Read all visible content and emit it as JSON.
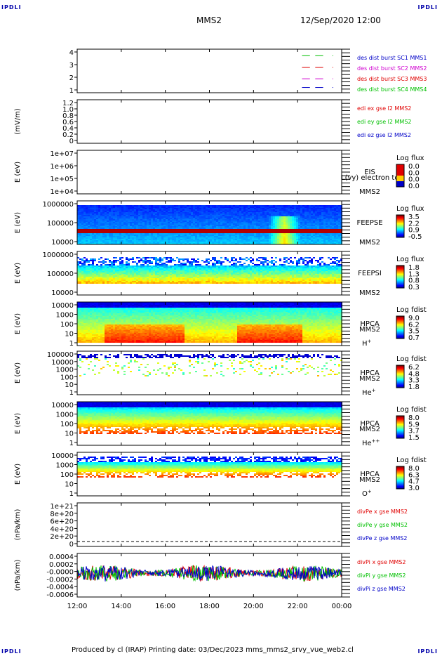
{
  "corner_label": "IPDLI",
  "header": {
    "spacecraft": "MMS2",
    "datetime": "12/Sep/2020 12:00"
  },
  "footer": "Produced by cl (IRAP)   Printing date: 03/Dec/2023   mms_mms2_srvy_vue_web2.cl",
  "x_ticks": [
    "12:00",
    "14:00",
    "16:00",
    "18:00",
    "20:00",
    "22:00",
    "00:00"
  ],
  "colors": {
    "red": "#e00000",
    "green": "#00c000",
    "blue": "#0000c8",
    "magenta": "#d000d0"
  },
  "chart_data": [
    {
      "type": "line",
      "panel": "dist_burst",
      "yticks": [
        "4",
        "3",
        "2",
        "1"
      ],
      "ylim": [
        0.5,
        4.5
      ],
      "legend": [
        {
          "name": "des dist burst SC1 MMS1",
          "color": "#0000c8"
        },
        {
          "name": "des dist burst SC2 MMS2",
          "color": "#d000d0"
        },
        {
          "name": "des dist burst SC3 MMS3",
          "color": "#e00000"
        },
        {
          "name": "des dist burst SC4 MMS4",
          "color": "#00c000"
        }
      ]
    },
    {
      "type": "line",
      "panel": "edi",
      "ylabel": "(mV/m)",
      "yticks": [
        "1.2",
        "1.0",
        "0.8",
        "0.6",
        "0.4",
        "0.2",
        "0"
      ],
      "ylim": [
        0,
        1.3
      ],
      "legend": [
        {
          "name": "edi ex gse l2 MMS2",
          "color": "#e00000"
        },
        {
          "name": "edi ey gse l2 MMS2",
          "color": "#00c000"
        },
        {
          "name": "edi ez gse l2 MMS2",
          "color": "#0000c8"
        }
      ]
    },
    {
      "type": "heatmap",
      "panel": "eis",
      "ylabel": "E (eV)",
      "yticks": [
        "1e+07",
        "1e+06",
        "1e+05",
        "1e+04"
      ],
      "scale": "log",
      "labels": [
        "EIS",
        "MMS2"
      ],
      "overlay": "L(vy) electron to",
      "colorbar_title": "Log flux",
      "colorbar_ticks": [
        "0.0",
        "0.0",
        "0.0",
        "0.0"
      ]
    },
    {
      "type": "heatmap",
      "panel": "feeps_e",
      "ylabel": "E (eV)",
      "yticks": [
        "1000000",
        "100000",
        "10000"
      ],
      "scale": "log",
      "labels": [
        "FEEPSE",
        "MMS2"
      ],
      "colorbar_title": "Log flux",
      "colorbar_ticks": [
        "3.5",
        "2.2",
        "0.9",
        "-0.5"
      ]
    },
    {
      "type": "heatmap",
      "panel": "feeps_i",
      "ylabel": "E (eV)",
      "yticks": [
        "1000000",
        "100000",
        "10000"
      ],
      "scale": "log",
      "labels": [
        "FEEPSI",
        "MMS2"
      ],
      "colorbar_title": "Log flux",
      "colorbar_ticks": [
        "1.8",
        "1.3",
        "0.8",
        "0.3"
      ]
    },
    {
      "type": "heatmap",
      "panel": "hpca_h",
      "ylabel": "E (eV)",
      "yticks": [
        "10000",
        "1000",
        "100",
        "10",
        "1"
      ],
      "scale": "log",
      "labels": [
        "HPCA",
        "MMS2"
      ],
      "species": "H",
      "charge": "+",
      "colorbar_title": "Log fdist",
      "colorbar_ticks": [
        "9.0",
        "6.2",
        "3.5",
        "0.7"
      ]
    },
    {
      "type": "heatmap",
      "panel": "hpca_he",
      "ylabel": "E (eV)",
      "yticks": [
        "100000",
        "10000",
        "1000",
        "100",
        "10",
        "1"
      ],
      "scale": "log",
      "labels": [
        "HPCA",
        "MMS2"
      ],
      "species": "He",
      "charge": "+",
      "colorbar_title": "Log fdist",
      "colorbar_ticks": [
        "6.2",
        "4.8",
        "3.3",
        "1.8"
      ]
    },
    {
      "type": "heatmap",
      "panel": "hpca_he2",
      "ylabel": "E (eV)",
      "yticks": [
        "10000",
        "1000",
        "100",
        "10",
        "1"
      ],
      "scale": "log",
      "labels": [
        "HPCA",
        "MMS2"
      ],
      "species": "He",
      "charge": "++",
      "colorbar_title": "Log fdist",
      "colorbar_ticks": [
        "8.0",
        "5.9",
        "3.7",
        "1.5"
      ]
    },
    {
      "type": "heatmap",
      "panel": "hpca_o",
      "ylabel": "E (eV)",
      "yticks": [
        "10000",
        "1000",
        "100",
        "10",
        "1"
      ],
      "scale": "log",
      "labels": [
        "HPCA",
        "MMS2"
      ],
      "species": "O",
      "charge": "+",
      "colorbar_title": "Log fdist",
      "colorbar_ticks": [
        "8.0",
        "6.3",
        "4.7",
        "3.0"
      ]
    },
    {
      "type": "line",
      "panel": "divpe",
      "ylabel": "(nPa/km)",
      "yticks": [
        "1e+21",
        "8e+20",
        "6e+20",
        "4e+20",
        "2e+20",
        "0"
      ],
      "ylim": [
        0,
        1.1e+21
      ],
      "legend": [
        {
          "name": "divPe x gse MMS2",
          "color": "#e00000"
        },
        {
          "name": "divPe y gse MMS2",
          "color": "#00c000"
        },
        {
          "name": "divPe z gse MMS2",
          "color": "#0000c8"
        }
      ]
    },
    {
      "type": "line",
      "panel": "divpi",
      "ylabel": "(nPa/km)",
      "yticks": [
        "0.0004",
        "0.0002",
        "-0.0000",
        "-0.0002",
        "-0.0004",
        "-0.0006"
      ],
      "ylim": [
        -0.0007,
        0.0005
      ],
      "legend": [
        {
          "name": "divPi x gse MMS2",
          "color": "#e00000"
        },
        {
          "name": "divPi y gse MMS2",
          "color": "#00c000"
        },
        {
          "name": "divPi z gse MMS2",
          "color": "#0000c8"
        }
      ]
    }
  ]
}
